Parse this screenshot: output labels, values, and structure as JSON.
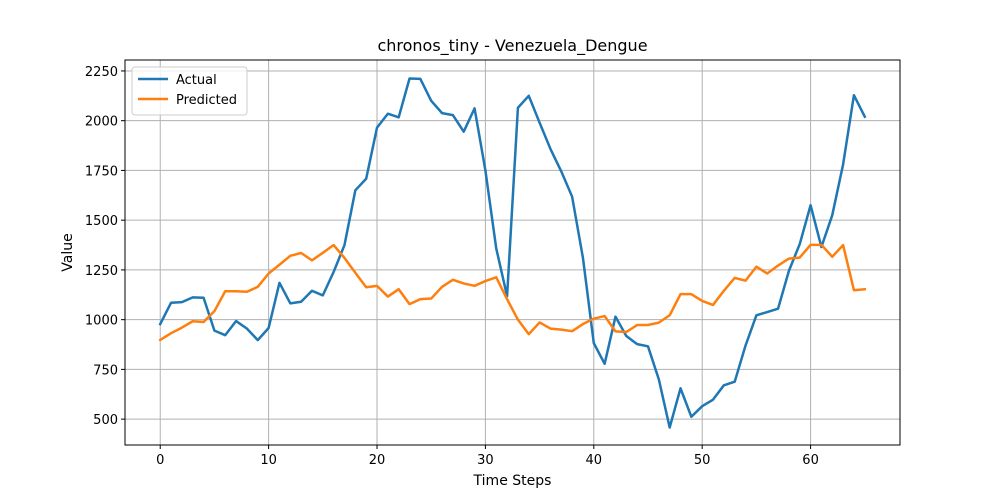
{
  "chart_data": {
    "type": "line",
    "title": "chronos_tiny - Venezuela_Dengue",
    "xlabel": "Time Steps",
    "ylabel": "Value",
    "xlim": [
      -3.25,
      68.25
    ],
    "ylim": [
      370,
      2305
    ],
    "xticks": [
      0,
      10,
      20,
      30,
      40,
      50,
      60
    ],
    "yticks": [
      500,
      750,
      1000,
      1250,
      1500,
      1750,
      2000,
      2250
    ],
    "grid": true,
    "legend_position": "top-left",
    "series": [
      {
        "name": "Actual",
        "color": "#1f77b4",
        "values": [
          978,
          1085,
          1088,
          1112,
          1110,
          945,
          922,
          993,
          955,
          897,
          958,
          1185,
          1082,
          1090,
          1145,
          1122,
          1240,
          1375,
          1650,
          1708,
          1965,
          2035,
          2017,
          2212,
          2210,
          2100,
          2038,
          2028,
          1945,
          2062,
          1750,
          1358,
          1118,
          2065,
          2125,
          1990,
          1858,
          1745,
          1618,
          1310,
          882,
          778,
          1015,
          918,
          877,
          866,
          700,
          458,
          655,
          512,
          565,
          598,
          670,
          688,
          870,
          1022,
          1038,
          1055,
          1245,
          1380,
          1575,
          1365,
          1525,
          1780,
          2128,
          2020
        ]
      },
      {
        "name": "Predicted",
        "color": "#ff7f0e",
        "values": [
          898,
          932,
          960,
          992,
          988,
          1043,
          1143,
          1143,
          1140,
          1165,
          1232,
          1276,
          1321,
          1335,
          1298,
          1336,
          1375,
          1310,
          1236,
          1163,
          1170,
          1116,
          1153,
          1078,
          1103,
          1106,
          1165,
          1200,
          1182,
          1170,
          1194,
          1213,
          1103,
          1000,
          927,
          986,
          955,
          950,
          942,
          978,
          1005,
          1018,
          941,
          938,
          973,
          973,
          985,
          1022,
          1128,
          1128,
          1094,
          1074,
          1145,
          1210,
          1196,
          1266,
          1232,
          1272,
          1307,
          1312,
          1376,
          1376,
          1316,
          1375,
          1148,
          1153
        ]
      }
    ]
  }
}
